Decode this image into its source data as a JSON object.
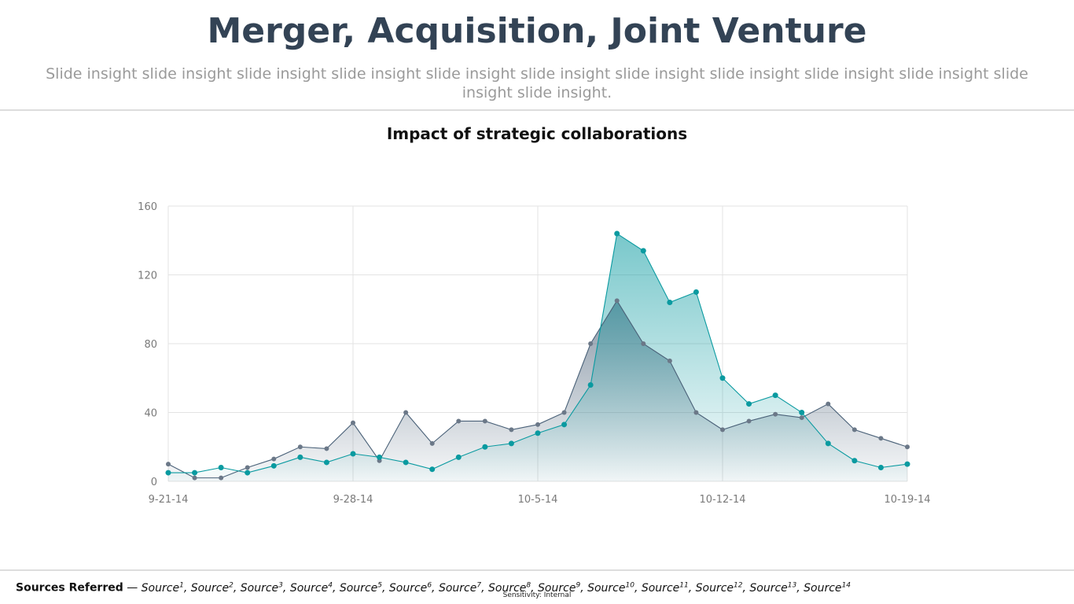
{
  "header": {
    "title": "Merger, Acquisition, Joint Venture",
    "subtitle": "Slide insight slide insight slide insight slide insight slide insight slide insight slide insight slide insight slide insight slide insight slide insight slide insight."
  },
  "chart_data": {
    "type": "area",
    "title": "Impact of strategic collaborations",
    "xlabel": "",
    "ylabel": "",
    "x_tick_labels": [
      "9-21-14",
      "9-28-14",
      "10-5-14",
      "10-12-14",
      "10-19-14"
    ],
    "x_start": "9-21-14",
    "ylim": [
      0,
      160
    ],
    "y_ticks": [
      0,
      40,
      80,
      120,
      160
    ],
    "grid": true,
    "legend": "none",
    "colors": {
      "series_1": "#4a6178",
      "series_2": "#0a9aa0"
    },
    "series": [
      {
        "values": [
          10,
          2,
          2,
          8,
          13,
          20,
          19,
          34,
          12,
          40,
          22,
          35,
          35,
          30,
          33,
          40,
          80,
          105,
          80,
          70,
          40,
          30,
          35,
          39,
          37,
          45,
          30,
          25,
          20
        ]
      },
      {
        "values": [
          5,
          5,
          8,
          5,
          9,
          14,
          11,
          16,
          14,
          11,
          7,
          14,
          20,
          22,
          28,
          33,
          56,
          144,
          134,
          104,
          110,
          60,
          45,
          50,
          40,
          22,
          12,
          8,
          10
        ]
      }
    ]
  },
  "footer": {
    "sources_label": "Sources Referred",
    "separator": " — ",
    "sources": [
      "Source",
      "Source",
      "Source",
      "Source",
      "Source",
      "Source",
      "Source",
      "Source",
      "Source",
      "Source",
      "Source",
      "Source",
      "Source",
      "Source"
    ],
    "source_numbers": [
      "1",
      "2",
      "3",
      "4",
      "5",
      "6",
      "7",
      "8",
      "9",
      "10",
      "11",
      "12",
      "13",
      "14"
    ],
    "sensitivity": "Sensitivity: Internal"
  }
}
